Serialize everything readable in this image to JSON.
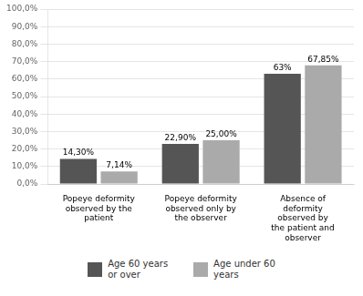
{
  "chart_data": {
    "type": "bar",
    "categories": [
      "Popeye deformity\nobserved by the\npatient",
      "Popeye deformity\nobserved only by\nthe observer",
      "Absence of\ndeformity\nobserved by\nthe patient and\nobserver"
    ],
    "series": [
      {
        "name": "Age 60 years\nor over",
        "color": "#555555",
        "values": [
          14.3,
          22.9,
          63.0
        ],
        "value_labels": [
          "14,30%",
          "22,90%",
          "63%"
        ]
      },
      {
        "name": "Age under 60\nyears",
        "color": "#aaaaaa",
        "values": [
          7.14,
          25.0,
          67.85
        ],
        "value_labels": [
          "7,14%",
          "25,00%",
          "67,85%"
        ]
      }
    ],
    "ylim": [
      0,
      100
    ],
    "yticks": [
      {
        "value": 0,
        "label": "0,0%"
      },
      {
        "value": 10,
        "label": "10,0%"
      },
      {
        "value": 20,
        "label": "20,0%"
      },
      {
        "value": 30,
        "label": "30,0%"
      },
      {
        "value": 40,
        "label": "40,0%"
      },
      {
        "value": 50,
        "label": "50,0%"
      },
      {
        "value": 60,
        "label": "60,0%"
      },
      {
        "value": 70,
        "label": "70,0%"
      },
      {
        "value": 80,
        "label": "80,0%"
      },
      {
        "value": 90,
        "label": "90,0%"
      },
      {
        "value": 100,
        "label": "100,0%"
      }
    ],
    "grid": true,
    "data_labels": true,
    "legend": "bottom"
  }
}
